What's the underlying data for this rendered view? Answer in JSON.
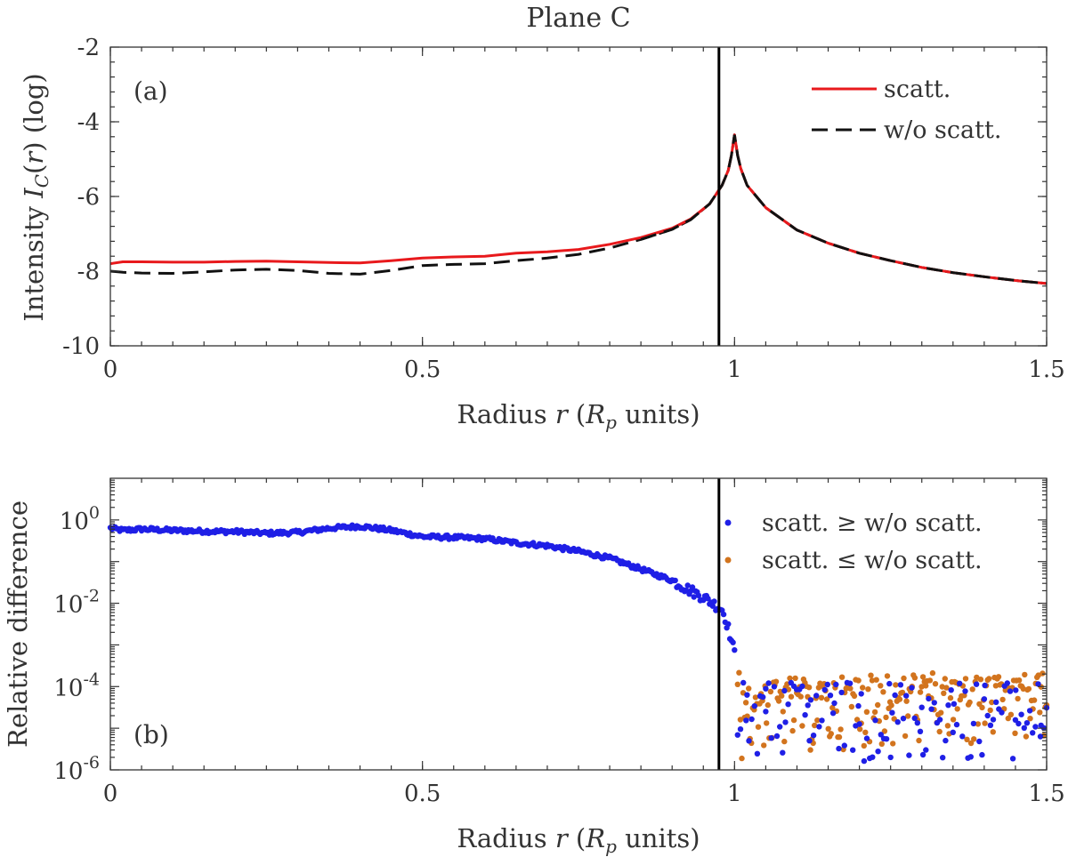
{
  "figure": {
    "title": "Plane C"
  },
  "chart_data": [
    {
      "panel": "a",
      "type": "line",
      "panel_label": "(a)",
      "xlabel": "Radius r (R_p units)",
      "ylabel": "Intensity I_C(r) (log)",
      "xlim": [
        0,
        1.5
      ],
      "ylim": [
        -10,
        -2
      ],
      "x_ticks": [
        0,
        0.5,
        1,
        1.5
      ],
      "x_tick_labels": [
        "0",
        "0.5",
        "1",
        "1.5"
      ],
      "y_ticks": [
        -10,
        -8,
        -6,
        -4,
        -2
      ],
      "y_tick_labels": [
        "-10",
        "-8",
        "-6",
        "-4",
        "-2"
      ],
      "vline_x": 0.975,
      "legend_position": "top-right",
      "series": [
        {
          "name": "scatt.",
          "color": "#e8191c",
          "style": "solid",
          "x": [
            0,
            0.02,
            0.05,
            0.1,
            0.15,
            0.2,
            0.25,
            0.3,
            0.35,
            0.4,
            0.45,
            0.5,
            0.55,
            0.6,
            0.65,
            0.7,
            0.75,
            0.8,
            0.85,
            0.9,
            0.93,
            0.96,
            0.98,
            0.99,
            0.995,
            1.0,
            1.005,
            1.01,
            1.02,
            1.05,
            1.1,
            1.15,
            1.2,
            1.25,
            1.3,
            1.35,
            1.4,
            1.45,
            1.5
          ],
          "y": [
            -7.8,
            -7.75,
            -7.75,
            -7.76,
            -7.76,
            -7.74,
            -7.73,
            -7.75,
            -7.77,
            -7.78,
            -7.72,
            -7.65,
            -7.62,
            -7.6,
            -7.52,
            -7.48,
            -7.42,
            -7.28,
            -7.1,
            -6.85,
            -6.6,
            -6.2,
            -5.7,
            -5.3,
            -4.9,
            -4.35,
            -4.9,
            -5.25,
            -5.7,
            -6.3,
            -6.9,
            -7.25,
            -7.52,
            -7.72,
            -7.9,
            -8.04,
            -8.15,
            -8.25,
            -8.33
          ]
        },
        {
          "name": "w/o scatt.",
          "color": "#111111",
          "style": "dashed",
          "x": [
            0,
            0.02,
            0.05,
            0.1,
            0.15,
            0.2,
            0.25,
            0.3,
            0.35,
            0.4,
            0.45,
            0.5,
            0.55,
            0.6,
            0.65,
            0.7,
            0.75,
            0.8,
            0.85,
            0.9,
            0.93,
            0.96,
            0.98,
            0.99,
            0.995,
            1.0,
            1.005,
            1.01,
            1.02,
            1.05,
            1.1,
            1.15,
            1.2,
            1.25,
            1.3,
            1.35,
            1.4,
            1.45,
            1.5
          ],
          "y": [
            -8.0,
            -8.03,
            -8.05,
            -8.06,
            -8.02,
            -7.97,
            -7.95,
            -7.98,
            -8.06,
            -8.08,
            -7.98,
            -7.85,
            -7.82,
            -7.8,
            -7.72,
            -7.65,
            -7.55,
            -7.38,
            -7.15,
            -6.88,
            -6.62,
            -6.2,
            -5.7,
            -5.3,
            -4.9,
            -4.35,
            -4.9,
            -5.25,
            -5.7,
            -6.3,
            -6.9,
            -7.25,
            -7.52,
            -7.72,
            -7.9,
            -8.04,
            -8.15,
            -8.25,
            -8.33
          ]
        }
      ]
    },
    {
      "panel": "b",
      "type": "scatter",
      "panel_label": "(b)",
      "xlabel": "Radius r (R_p units)",
      "ylabel": "Relative difference",
      "xlim": [
        0,
        1.5
      ],
      "ylim_log10": [
        -6,
        1
      ],
      "y_scale": "log",
      "x_ticks": [
        0,
        0.5,
        1,
        1.5
      ],
      "x_tick_labels": [
        "0",
        "0.5",
        "1",
        "1.5"
      ],
      "y_tick_exponents": [
        -6,
        -4,
        -2,
        0
      ],
      "y_tick_base": "10",
      "vline_x": 0.975,
      "legend_position": "top-right",
      "series": [
        {
          "name": "scatt. ≥ w/o scatt.",
          "color": "#1f1fe6",
          "x": [
            0.0,
            0.02,
            0.05,
            0.1,
            0.15,
            0.2,
            0.25,
            0.3,
            0.35,
            0.4,
            0.45,
            0.5,
            0.55,
            0.6,
            0.65,
            0.7,
            0.75,
            0.8,
            0.85,
            0.9,
            0.93,
            0.95,
            0.96,
            0.97,
            0.98,
            0.985,
            0.99,
            0.995,
            1.0
          ],
          "y_log10": [
            -0.2,
            -0.25,
            -0.22,
            -0.25,
            -0.27,
            -0.28,
            -0.32,
            -0.3,
            -0.2,
            -0.15,
            -0.25,
            -0.4,
            -0.42,
            -0.45,
            -0.55,
            -0.62,
            -0.75,
            -0.92,
            -1.18,
            -1.45,
            -1.7,
            -1.85,
            -1.95,
            -2.05,
            -2.15,
            -2.35,
            -2.6,
            -2.9,
            -3.2
          ],
          "scatter_low_x": [
            1.02,
            1.05,
            1.08,
            1.12,
            1.16,
            1.2,
            1.25,
            1.3,
            1.35,
            1.4,
            1.45,
            1.49
          ],
          "scatter_low_y_log10": [
            -4.2,
            -4.6,
            -4.1,
            -5.3,
            -4.4,
            -4.9,
            -5.7,
            -4.5,
            -5.1,
            -4.3,
            -4.8,
            -5.2
          ]
        },
        {
          "name": "scatt. ≤ w/o scatt.",
          "color": "#d2741e",
          "x": [
            1.01,
            1.05,
            1.1,
            1.15,
            1.2,
            1.25,
            1.3,
            1.35,
            1.4,
            1.45,
            1.5
          ],
          "y_log10": [
            -4.1,
            -4.0,
            -3.95,
            -3.92,
            -3.9,
            -3.88,
            -3.85,
            -3.82,
            -3.8,
            -3.78,
            -3.75
          ]
        }
      ]
    }
  ]
}
